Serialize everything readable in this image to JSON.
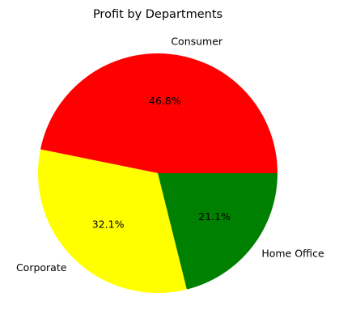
{
  "chart_data": {
    "type": "pie",
    "title": "Profit by Departments",
    "categories": [
      "Consumer",
      "Corporate",
      "Home Office"
    ],
    "values": [
      46.8,
      32.1,
      21.1
    ],
    "percent_labels": [
      "46.8%",
      "32.1%",
      "21.1%"
    ],
    "colors": [
      "#ff0000",
      "#ffff00",
      "#008000"
    ],
    "start_angle_deg": 0,
    "direction": "counterclockwise",
    "legend": "none"
  }
}
